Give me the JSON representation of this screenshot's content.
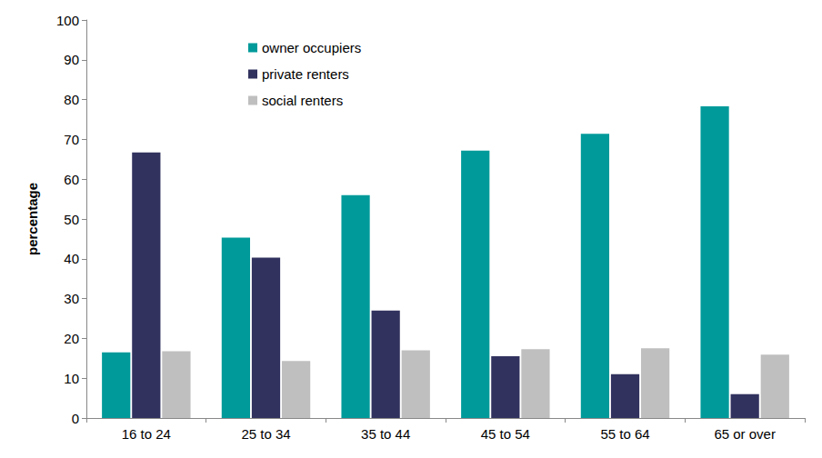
{
  "chart_data": {
    "type": "bar",
    "ylabel": "percentage",
    "categories": [
      "16 to 24",
      "25 to 34",
      "35 to 44",
      "45 to 54",
      "55 to 64",
      "65 or over"
    ],
    "series": [
      {
        "name": "owner occupiers",
        "color": "#009a9a",
        "values": [
          16.5,
          45.3,
          56.0,
          67.2,
          71.4,
          78.3
        ]
      },
      {
        "name": "private renters",
        "color": "#32325f",
        "values": [
          66.7,
          40.3,
          27.0,
          15.5,
          11.0,
          6.0
        ]
      },
      {
        "name": "social renters",
        "color": "#bfbfbf",
        "values": [
          16.8,
          14.3,
          17.0,
          17.3,
          17.5,
          15.9
        ]
      }
    ],
    "ylim": [
      0,
      100
    ],
    "yticks": [
      0,
      10,
      20,
      30,
      40,
      50,
      60,
      70,
      80,
      90,
      100
    ],
    "grid": false,
    "legend": "top"
  }
}
